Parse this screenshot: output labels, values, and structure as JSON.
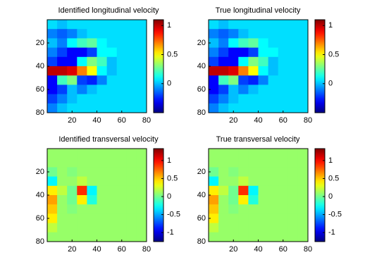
{
  "chart_data": [
    {
      "type": "heatmap",
      "title": "Identified longitudinal velocity",
      "colormap": "jet",
      "xlim": [
        0,
        80
      ],
      "xticks": [
        20,
        40,
        60,
        80
      ],
      "ylim": [
        0,
        80
      ],
      "yticks": [
        20,
        40,
        60,
        80
      ],
      "clim": [
        -0.5,
        1.1
      ],
      "cticks": [
        0,
        0.5,
        1
      ],
      "z": [
        [
          0.05,
          0,
          0.05,
          0.05,
          0.05,
          0.05,
          0.05,
          0.05,
          0.05,
          0.05
        ],
        [
          -0.1,
          -0.15,
          -0.1,
          0,
          0.05,
          0.05,
          0.05,
          0.05,
          0.05,
          0.05
        ],
        [
          0,
          -0.1,
          0.1,
          0.2,
          0.25,
          0.1,
          0.05,
          0.05,
          0.05,
          0.05
        ],
        [
          -0.1,
          -0.2,
          -0.3,
          -0.3,
          -0.2,
          0.1,
          0.1,
          0.05,
          0.05,
          0.05
        ],
        [
          -0.2,
          -0.3,
          -0.3,
          0.1,
          0.3,
          0.2,
          0,
          0.05,
          0.05,
          0.05
        ],
        [
          1,
          1,
          0.95,
          0.7,
          0.5,
          0.1,
          0,
          0.05,
          0.05,
          0.05
        ],
        [
          -0.3,
          0.2,
          0.3,
          -0.2,
          -0.25,
          -0.1,
          0.05,
          0.05,
          0.05,
          0.05
        ],
        [
          -0.3,
          -0.2,
          0,
          -0.1,
          0,
          0.05,
          0.05,
          0.05,
          0.05,
          0.05
        ],
        [
          -0.2,
          -0.1,
          0,
          0.05,
          0.05,
          0.05,
          0.05,
          0.05,
          0.05,
          0.05
        ],
        [
          -0.1,
          0,
          0.05,
          0.05,
          0.05,
          0.05,
          0.05,
          0.05,
          0.05,
          0.05
        ]
      ]
    },
    {
      "type": "heatmap",
      "title": "True longitudinal velocity",
      "colormap": "jet",
      "xlim": [
        0,
        80
      ],
      "xticks": [
        20,
        40,
        60,
        80
      ],
      "ylim": [
        0,
        80
      ],
      "yticks": [
        20,
        40,
        60,
        80
      ],
      "clim": [
        -0.5,
        1.1
      ],
      "cticks": [
        0,
        0.5,
        1
      ],
      "z": [
        [
          0.05,
          0,
          0.05,
          0.05,
          0.05,
          0.05,
          0.05,
          0.05,
          0.05,
          0.05
        ],
        [
          -0.1,
          -0.15,
          -0.1,
          0,
          0.05,
          0.05,
          0.05,
          0.05,
          0.05,
          0.05
        ],
        [
          0,
          -0.1,
          0.1,
          0.2,
          0.25,
          0.1,
          0.05,
          0.05,
          0.05,
          0.05
        ],
        [
          -0.1,
          -0.2,
          -0.3,
          -0.3,
          -0.2,
          0.1,
          0.1,
          0.05,
          0.05,
          0.05
        ],
        [
          -0.2,
          -0.3,
          -0.3,
          0.1,
          0.3,
          0.2,
          0,
          0.05,
          0.05,
          0.05
        ],
        [
          1,
          1,
          0.95,
          0.7,
          0.5,
          0.1,
          0,
          0.05,
          0.05,
          0.05
        ],
        [
          -0.3,
          0.2,
          0.3,
          -0.2,
          -0.25,
          -0.1,
          0.05,
          0.05,
          0.05,
          0.05
        ],
        [
          -0.3,
          -0.2,
          0,
          -0.1,
          0,
          0.05,
          0.05,
          0.05,
          0.05,
          0.05
        ],
        [
          -0.2,
          -0.1,
          0,
          0.05,
          0.05,
          0.05,
          0.05,
          0.05,
          0.05,
          0.05
        ],
        [
          -0.1,
          0,
          0.05,
          0.05,
          0.05,
          0.05,
          0.05,
          0.05,
          0.05,
          0.05
        ]
      ]
    },
    {
      "type": "heatmap",
      "title": "Identified transversal velocity",
      "colormap": "jet",
      "xlim": [
        0,
        80
      ],
      "xticks": [
        20,
        40,
        60,
        80
      ],
      "ylim": [
        0,
        80
      ],
      "yticks": [
        20,
        40,
        60,
        80
      ],
      "clim": [
        -1.25,
        1.33
      ],
      "cticks": [
        -1,
        -0.5,
        0,
        0.5,
        1
      ],
      "z": [
        [
          0.1,
          0.1,
          0.1,
          0.1,
          0.1,
          0.1,
          0.1,
          0.1,
          0.1,
          0.1
        ],
        [
          0.1,
          0.1,
          0.1,
          0.1,
          0.1,
          0.1,
          0.1,
          0.1,
          0.1,
          0.1
        ],
        [
          0,
          0.1,
          0.05,
          0.1,
          0.1,
          0.1,
          0.1,
          0.1,
          0.1,
          0.1
        ],
        [
          -0.3,
          0.1,
          0.1,
          0.2,
          0.1,
          0.1,
          0.1,
          0.1,
          0.1,
          0.1
        ],
        [
          0.4,
          0.2,
          0,
          0.9,
          -0.3,
          0.1,
          0.1,
          0.1,
          0.1,
          0.1
        ],
        [
          0.6,
          0.1,
          0,
          0.4,
          -0.2,
          0.1,
          0.1,
          0.1,
          0.1,
          0.1
        ],
        [
          0.5,
          0.1,
          0.05,
          0.1,
          0.1,
          0.1,
          0.1,
          0.1,
          0.1,
          0.1
        ],
        [
          0.4,
          0.1,
          0.1,
          0.1,
          0.1,
          0.1,
          0.1,
          0.1,
          0.1,
          0.1
        ],
        [
          0.2,
          0.1,
          0.1,
          0.1,
          0.1,
          0.1,
          0.1,
          0.1,
          0.1,
          0.1
        ],
        [
          0.1,
          0.1,
          0.1,
          0.1,
          0.1,
          0.1,
          0.1,
          0.1,
          0.1,
          0.1
        ]
      ]
    },
    {
      "type": "heatmap",
      "title": "True transversal velocity",
      "colormap": "jet",
      "xlim": [
        0,
        80
      ],
      "xticks": [
        20,
        40,
        60,
        80
      ],
      "ylim": [
        0,
        80
      ],
      "yticks": [
        20,
        40,
        60,
        80
      ],
      "clim": [
        -1.25,
        1.33
      ],
      "cticks": [
        -1,
        -0.5,
        0,
        0.5,
        1
      ],
      "z": [
        [
          0.1,
          0.1,
          0.1,
          0.1,
          0.1,
          0.1,
          0.1,
          0.1,
          0.1,
          0.1
        ],
        [
          0.1,
          0.1,
          0.1,
          0.1,
          0.1,
          0.1,
          0.1,
          0.1,
          0.1,
          0.1
        ],
        [
          0,
          0.1,
          0.05,
          0.1,
          0.1,
          0.1,
          0.1,
          0.1,
          0.1,
          0.1
        ],
        [
          -0.3,
          0.1,
          0.1,
          0.2,
          0.1,
          0.1,
          0.1,
          0.1,
          0.1,
          0.1
        ],
        [
          0.4,
          0.2,
          0,
          0.9,
          -0.3,
          0.1,
          0.1,
          0.1,
          0.1,
          0.1
        ],
        [
          0.6,
          0.1,
          0,
          0.4,
          -0.2,
          0.1,
          0.1,
          0.1,
          0.1,
          0.1
        ],
        [
          0.5,
          0.1,
          0.05,
          0.1,
          0.1,
          0.1,
          0.1,
          0.1,
          0.1,
          0.1
        ],
        [
          0.4,
          0.1,
          0.1,
          0.1,
          0.1,
          0.1,
          0.1,
          0.1,
          0.1,
          0.1
        ],
        [
          0.2,
          0.1,
          0.1,
          0.1,
          0.1,
          0.1,
          0.1,
          0.1,
          0.1,
          0.1
        ],
        [
          0.1,
          0.1,
          0.1,
          0.1,
          0.1,
          0.1,
          0.1,
          0.1,
          0.1,
          0.1
        ]
      ]
    }
  ]
}
